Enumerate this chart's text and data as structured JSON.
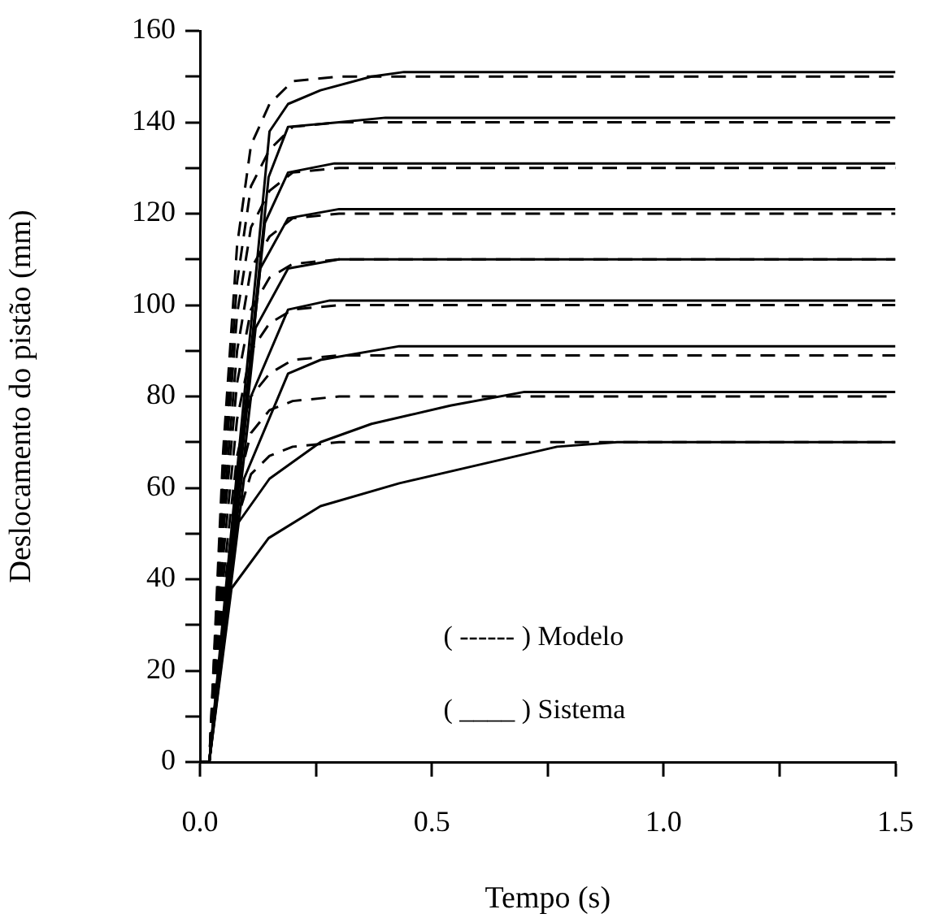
{
  "chart_data": {
    "type": "line",
    "xlabel": "Tempo (s)",
    "ylabel": "Deslocamento do pistão (mm)",
    "xlim": [
      0,
      1.5
    ],
    "xticks": [
      {
        "value": 0,
        "label": "0.0"
      },
      {
        "value": 0.25,
        "label": null
      },
      {
        "value": 0.5,
        "label": "0.5"
      },
      {
        "value": 0.75,
        "label": null
      },
      {
        "value": 1,
        "label": "1.0"
      },
      {
        "value": 1.25,
        "label": null
      },
      {
        "value": 1.5,
        "label": "1.5"
      }
    ],
    "ylim": [
      0,
      160
    ],
    "yticks": [
      0,
      {
        "value": 10,
        "label": null
      },
      20,
      {
        "value": 30,
        "label": null
      },
      40,
      {
        "value": 50,
        "label": null
      },
      60,
      {
        "value": 70,
        "label": null
      },
      80,
      {
        "value": 90,
        "label": null
      },
      100,
      {
        "value": 110,
        "label": null
      },
      120,
      {
        "value": 130,
        "label": null
      },
      140,
      {
        "value": 150,
        "label": null
      },
      160
    ],
    "grid": false,
    "legend": false,
    "marker": "none",
    "annotations": [
      "( ------ ) Modelo",
      "( ____ ) Sistema"
    ],
    "series": [
      {
        "color": "#000000",
        "line_style": "dashed",
        "x": [
          0,
          0.02,
          0.05,
          0.08,
          0.11,
          0.15,
          0.2,
          0.3,
          1.5
        ],
        "values": [
          0,
          0,
          68,
          113,
          135,
          144,
          149,
          150,
          150
        ]
      },
      {
        "color": "#000000",
        "line_style": "dashed",
        "x": [
          0,
          0.02,
          0.05,
          0.08,
          0.11,
          0.15,
          0.2,
          0.3,
          1.5
        ],
        "values": [
          0,
          0,
          63,
          105,
          126,
          134,
          139,
          140,
          140
        ]
      },
      {
        "color": "#000000",
        "line_style": "dashed",
        "x": [
          0,
          0.02,
          0.05,
          0.08,
          0.11,
          0.15,
          0.2,
          0.3,
          1.5
        ],
        "values": [
          0,
          0,
          59,
          98,
          117,
          125,
          129,
          130,
          130
        ]
      },
      {
        "color": "#000000",
        "line_style": "dashed",
        "x": [
          0,
          0.02,
          0.05,
          0.08,
          0.11,
          0.15,
          0.2,
          0.3,
          1.5
        ],
        "values": [
          0,
          0,
          54,
          90,
          108,
          115,
          119,
          120,
          120
        ]
      },
      {
        "color": "#000000",
        "line_style": "dashed",
        "x": [
          0,
          0.02,
          0.05,
          0.08,
          0.11,
          0.15,
          0.2,
          0.3,
          1.5
        ],
        "values": [
          0,
          0,
          50,
          83,
          99,
          106,
          109,
          110,
          110
        ]
      },
      {
        "color": "#000000",
        "line_style": "dashed",
        "x": [
          0,
          0.02,
          0.05,
          0.08,
          0.11,
          0.15,
          0.2,
          0.3,
          1.5
        ],
        "values": [
          0,
          0,
          45,
          75,
          90,
          96,
          99,
          100,
          100
        ]
      },
      {
        "color": "#000000",
        "line_style": "dashed",
        "x": [
          0,
          0.02,
          0.05,
          0.08,
          0.11,
          0.15,
          0.2,
          0.3,
          1.5
        ],
        "values": [
          0,
          0,
          40,
          67,
          80,
          85,
          88,
          89,
          89
        ]
      },
      {
        "color": "#000000",
        "line_style": "dashed",
        "x": [
          0,
          0.02,
          0.05,
          0.08,
          0.11,
          0.15,
          0.2,
          0.3,
          1.5
        ],
        "values": [
          0,
          0,
          36,
          60,
          72,
          77,
          79,
          80,
          80
        ]
      },
      {
        "color": "#000000",
        "line_style": "dashed",
        "x": [
          0,
          0.02,
          0.05,
          0.08,
          0.11,
          0.15,
          0.2,
          0.3,
          1.5
        ],
        "values": [
          0,
          0,
          32,
          53,
          63,
          67,
          69,
          70,
          70
        ]
      },
      {
        "color": "#000000",
        "line_style": "solid",
        "x": [
          0,
          0.02,
          0.15,
          0.19,
          0.26,
          0.37,
          0.44,
          1.5
        ],
        "values": [
          0,
          0,
          138,
          144,
          147,
          150,
          151,
          151
        ]
      },
      {
        "color": "#000000",
        "line_style": "solid",
        "x": [
          0,
          0.02,
          0.148,
          0.19,
          0.3,
          0.4,
          1.5
        ],
        "values": [
          0,
          0,
          128,
          139,
          140,
          141,
          141
        ]
      },
      {
        "color": "#000000",
        "line_style": "solid",
        "x": [
          0,
          0.02,
          0.14,
          0.19,
          0.29,
          1.5
        ],
        "values": [
          0,
          0,
          118,
          129,
          131,
          131
        ]
      },
      {
        "color": "#000000",
        "line_style": "solid",
        "x": [
          0,
          0.02,
          0.13,
          0.19,
          0.3,
          1.5
        ],
        "values": [
          0,
          0,
          108,
          119,
          121,
          121
        ]
      },
      {
        "color": "#000000",
        "line_style": "solid",
        "x": [
          0,
          0.02,
          0.12,
          0.19,
          0.3,
          1.5
        ],
        "values": [
          0,
          0,
          95,
          108,
          110,
          110
        ]
      },
      {
        "color": "#000000",
        "line_style": "solid",
        "x": [
          0,
          0.02,
          0.11,
          0.19,
          0.28,
          1.5
        ],
        "values": [
          0,
          0,
          80,
          99,
          101,
          101
        ]
      },
      {
        "color": "#000000",
        "line_style": "solid",
        "x": [
          0,
          0.02,
          0.095,
          0.19,
          0.26,
          0.43,
          1.5
        ],
        "values": [
          0,
          0,
          62,
          85,
          88,
          91,
          91
        ]
      },
      {
        "color": "#000000",
        "line_style": "solid",
        "x": [
          0,
          0.02,
          0.08,
          0.15,
          0.26,
          0.37,
          0.54,
          0.7,
          1.5
        ],
        "values": [
          0,
          0,
          52,
          62,
          70,
          74,
          78,
          81,
          81
        ]
      },
      {
        "color": "#000000",
        "line_style": "solid",
        "x": [
          0,
          0.02,
          0.068,
          0.148,
          0.26,
          0.43,
          0.6,
          0.77,
          0.9,
          1.5
        ],
        "values": [
          0,
          0,
          38,
          49,
          56,
          61,
          65,
          69,
          70,
          70
        ]
      }
    ]
  }
}
